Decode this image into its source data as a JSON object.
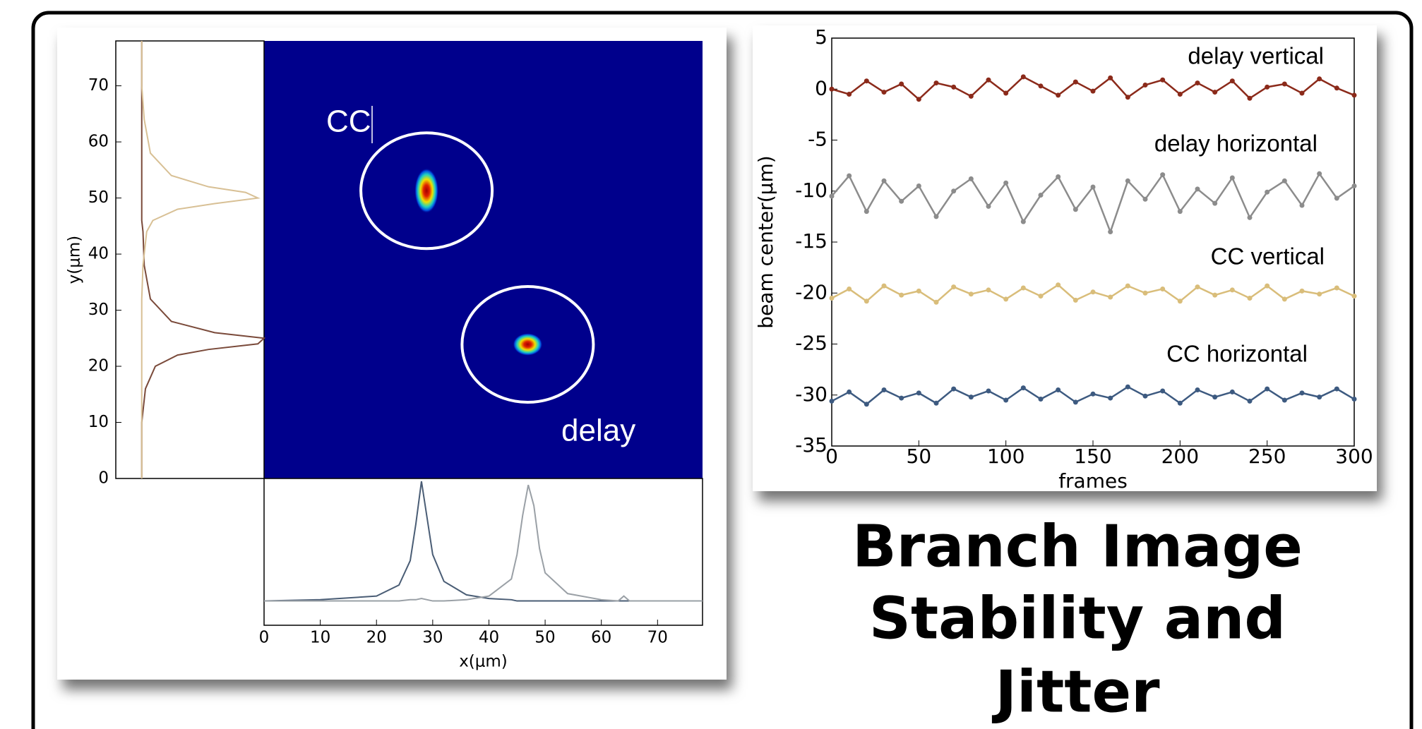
{
  "slide": {
    "title_lines": [
      "Branch Image",
      "Stability and",
      "Jitter"
    ]
  },
  "chart_data": [
    {
      "type": "image_profile",
      "xlabel": "x(μm)",
      "ylabel": "y(μm)",
      "xlim": [
        0,
        78
      ],
      "ylim": [
        0,
        78
      ],
      "xticks": [
        0,
        10,
        20,
        30,
        40,
        50,
        60,
        70
      ],
      "yticks": [
        0,
        10,
        20,
        30,
        40,
        50,
        60,
        70
      ],
      "annotations": [
        "CC",
        "delay"
      ],
      "spots": [
        {
          "x": 28.9,
          "y": 51.3
        },
        {
          "x": 46.9,
          "y": 23.9
        }
      ],
      "vlim": [
        0,
        1
      ],
      "x_profile": {
        "x": [
          0,
          10,
          20,
          24,
          26,
          27,
          28,
          29,
          30,
          32,
          36,
          40,
          44,
          45,
          46,
          47,
          48,
          49,
          50,
          54,
          60,
          63,
          64,
          65,
          70,
          78
        ],
        "series": [
          {
            "color": "#4a5d75",
            "values": [
              0.02,
              0.03,
              0.06,
              0.15,
              0.35,
              0.65,
              1,
              0.7,
              0.4,
              0.18,
              0.07,
              0.04,
              0.03,
              0.02,
              0.02,
              0.02,
              0.02,
              0.02,
              0.02,
              0.02,
              0.02,
              0.02,
              0.02,
              0.02,
              0.02,
              0.02
            ]
          },
          {
            "color": "#9aa0a6",
            "values": [
              0.02,
              0.02,
              0.02,
              0.02,
              0.03,
              0.03,
              0.04,
              0.03,
              0.02,
              0.02,
              0.03,
              0.06,
              0.2,
              0.4,
              0.72,
              0.97,
              0.8,
              0.45,
              0.25,
              0.08,
              0.03,
              0.02,
              0.06,
              0.02,
              0.02,
              0.02
            ]
          }
        ]
      },
      "y_profile": {
        "y": [
          0,
          10,
          16,
          20,
          22,
          23,
          24,
          25,
          26,
          28,
          32,
          38,
          44,
          46,
          48,
          49,
          50,
          51,
          52,
          54,
          58,
          64,
          70,
          78
        ],
        "series": [
          {
            "color": "#7a4a3a",
            "values": [
              0.01,
              0.01,
              0.04,
              0.12,
              0.3,
              0.55,
              0.95,
              1,
              0.6,
              0.25,
              0.08,
              0.03,
              0.02,
              0.01,
              0.01,
              0.01,
              0.01,
              0.01,
              0.01,
              0.01,
              0.01,
              0.01,
              0.01,
              0.01
            ]
          },
          {
            "color": "#d8c095",
            "values": [
              0.01,
              0.01,
              0.01,
              0.01,
              0.01,
              0.01,
              0.01,
              0.01,
              0.01,
              0.01,
              0.01,
              0.02,
              0.05,
              0.1,
              0.3,
              0.6,
              0.95,
              0.85,
              0.55,
              0.25,
              0.08,
              0.03,
              0.01,
              0.01
            ]
          }
        ]
      }
    },
    {
      "type": "line",
      "xlabel": "frames",
      "ylabel": "beam center(μm)",
      "xlim": [
        0,
        300
      ],
      "ylim": [
        -35,
        5
      ],
      "xticks": [
        0,
        50,
        100,
        150,
        200,
        250,
        300
      ],
      "yticks": [
        -35,
        -30,
        -25,
        -20,
        -15,
        -10,
        -5,
        0,
        5
      ],
      "x": [
        0,
        10,
        20,
        30,
        40,
        50,
        60,
        70,
        80,
        90,
        100,
        110,
        120,
        130,
        140,
        150,
        160,
        170,
        180,
        190,
        200,
        210,
        220,
        230,
        240,
        250,
        260,
        270,
        280,
        290,
        300
      ],
      "series": [
        {
          "name": "delay vertical",
          "color": "#8b2a1a",
          "values": [
            0,
            -0.5,
            0.8,
            -0.3,
            0.5,
            -1,
            0.6,
            0.2,
            -0.7,
            0.9,
            -0.4,
            1.2,
            0.3,
            -0.6,
            0.7,
            -0.2,
            1.1,
            -0.8,
            0.4,
            0.9,
            -0.5,
            0.6,
            -0.3,
            0.8,
            -0.9,
            0.2,
            0.5,
            -0.4,
            1,
            0.1,
            -0.6
          ]
        },
        {
          "name": "delay horizontal",
          "color": "#8c8c8c",
          "values": [
            -10.5,
            -8.5,
            -12,
            -9,
            -11,
            -9.5,
            -12.5,
            -10,
            -8.8,
            -11.5,
            -9.2,
            -13,
            -10.4,
            -8.6,
            -11.8,
            -9.6,
            -14,
            -9,
            -10.8,
            -8.4,
            -12,
            -9.8,
            -11.2,
            -8.7,
            -12.6,
            -10.1,
            -9,
            -11.4,
            -8.3,
            -10.7,
            -9.5
          ]
        },
        {
          "name": "CC vertical",
          "color": "#d9bd7a",
          "values": [
            -20.5,
            -19.6,
            -20.8,
            -19.3,
            -20.2,
            -19.8,
            -20.9,
            -19.4,
            -20.1,
            -19.7,
            -20.6,
            -19.5,
            -20.3,
            -19.2,
            -20.7,
            -19.9,
            -20.4,
            -19.3,
            -20,
            -19.6,
            -20.8,
            -19.4,
            -20.2,
            -19.7,
            -20.5,
            -19.3,
            -20.6,
            -19.8,
            -20.1,
            -19.5,
            -20.3
          ]
        },
        {
          "name": "CC horizontal",
          "color": "#3d5a80",
          "values": [
            -30.6,
            -29.7,
            -30.9,
            -29.5,
            -30.3,
            -29.8,
            -30.8,
            -29.4,
            -30.2,
            -29.6,
            -30.5,
            -29.3,
            -30.4,
            -29.5,
            -30.7,
            -29.9,
            -30.3,
            -29.2,
            -30.1,
            -29.6,
            -30.8,
            -29.5,
            -30.2,
            -29.7,
            -30.6,
            -29.4,
            -30.5,
            -29.8,
            -30.2,
            -29.4,
            -30.4
          ]
        }
      ]
    }
  ]
}
